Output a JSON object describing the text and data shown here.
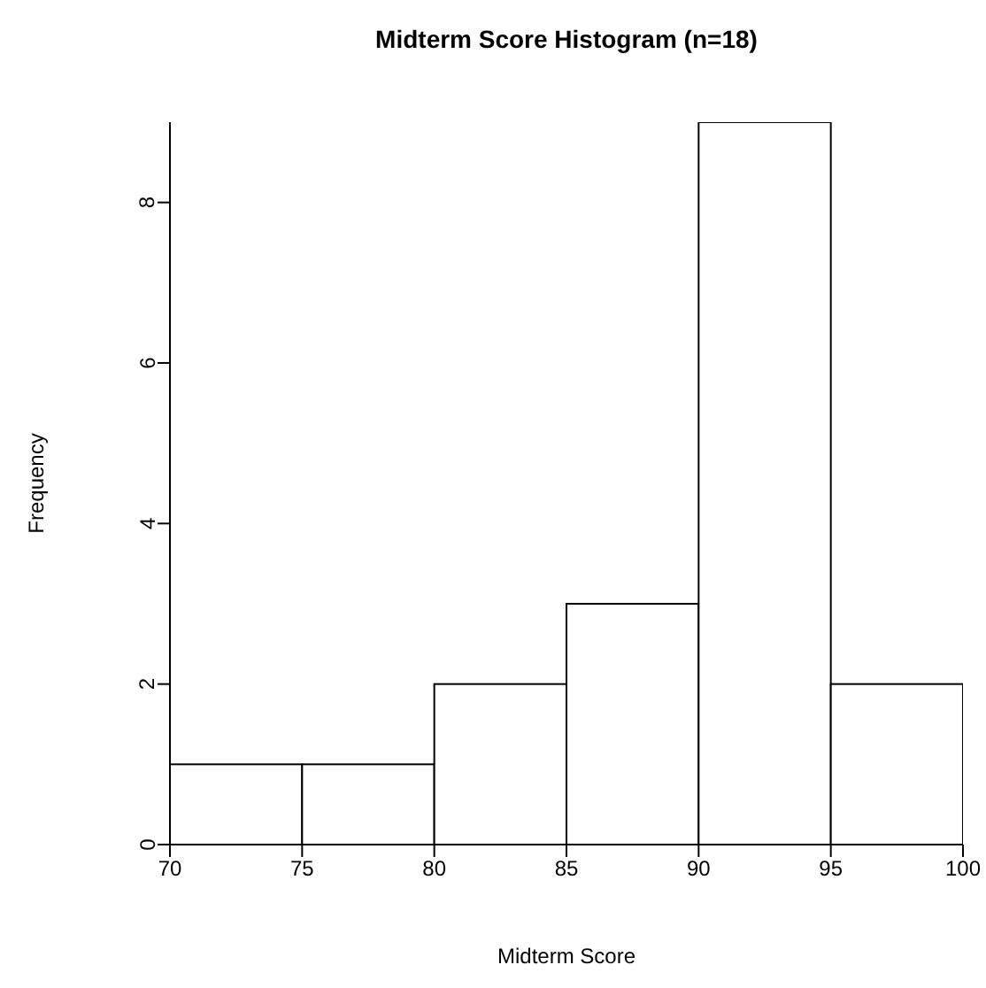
{
  "chart_data": {
    "type": "histogram",
    "title": "Midterm Score Histogram (n=18)",
    "xlabel": "Midterm Score",
    "ylabel": "Frequency",
    "bins": [
      70,
      75,
      80,
      85,
      90,
      95,
      100
    ],
    "values": [
      1,
      1,
      2,
      3,
      9,
      2
    ],
    "color": "#ffffff",
    "xlim": [
      70,
      100
    ],
    "xticks": [
      70,
      75,
      80,
      85,
      90,
      95,
      100
    ],
    "ylim": [
      0,
      9
    ],
    "yticks": [
      0,
      2,
      4,
      6,
      8
    ]
  }
}
